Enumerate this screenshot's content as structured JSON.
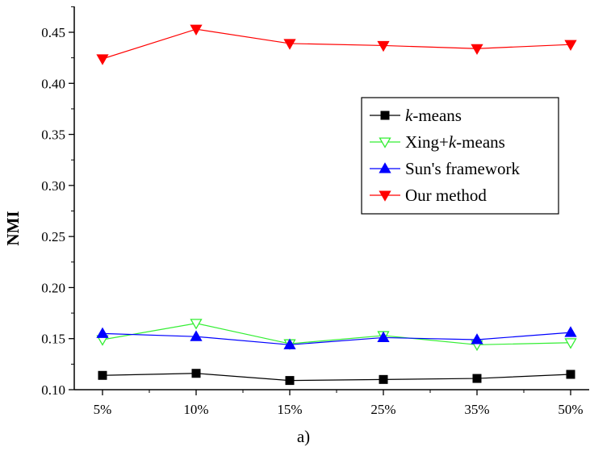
{
  "chart_data": {
    "type": "line",
    "caption": "a)",
    "ylabel": "NMI",
    "xlabel": "",
    "categories": [
      "5%",
      "10%",
      "15%",
      "25%",
      "35%",
      "50%"
    ],
    "ylim": [
      0.1,
      0.45
    ],
    "yticks": [
      "0.10",
      "0.15",
      "0.20",
      "0.25",
      "0.30",
      "0.35",
      "0.40",
      "0.45"
    ],
    "legend_position": "center-right",
    "series": [
      {
        "name": "k-means",
        "name_parts": [
          "k",
          "-means"
        ],
        "values": [
          0.114,
          0.116,
          0.109,
          0.11,
          0.111,
          0.115
        ],
        "color": "#000000",
        "marker": "square-filled"
      },
      {
        "name": "Xing+k-means",
        "name_parts": [
          "Xing+",
          "k",
          "-means"
        ],
        "values": [
          0.149,
          0.165,
          0.145,
          0.153,
          0.144,
          0.146
        ],
        "color": "#33ee33",
        "marker": "triangle-down-open"
      },
      {
        "name": "Sun's framework",
        "name_parts": [
          "Sun's framework"
        ],
        "values": [
          0.155,
          0.152,
          0.144,
          0.151,
          0.149,
          0.156
        ],
        "color": "#0000ff",
        "marker": "triangle-up-filled"
      },
      {
        "name": "Our method",
        "name_parts": [
          "Our method"
        ],
        "values": [
          0.424,
          0.453,
          0.439,
          0.437,
          0.434,
          0.438
        ],
        "color": "#ff0000",
        "marker": "triangle-down-filled"
      }
    ]
  }
}
